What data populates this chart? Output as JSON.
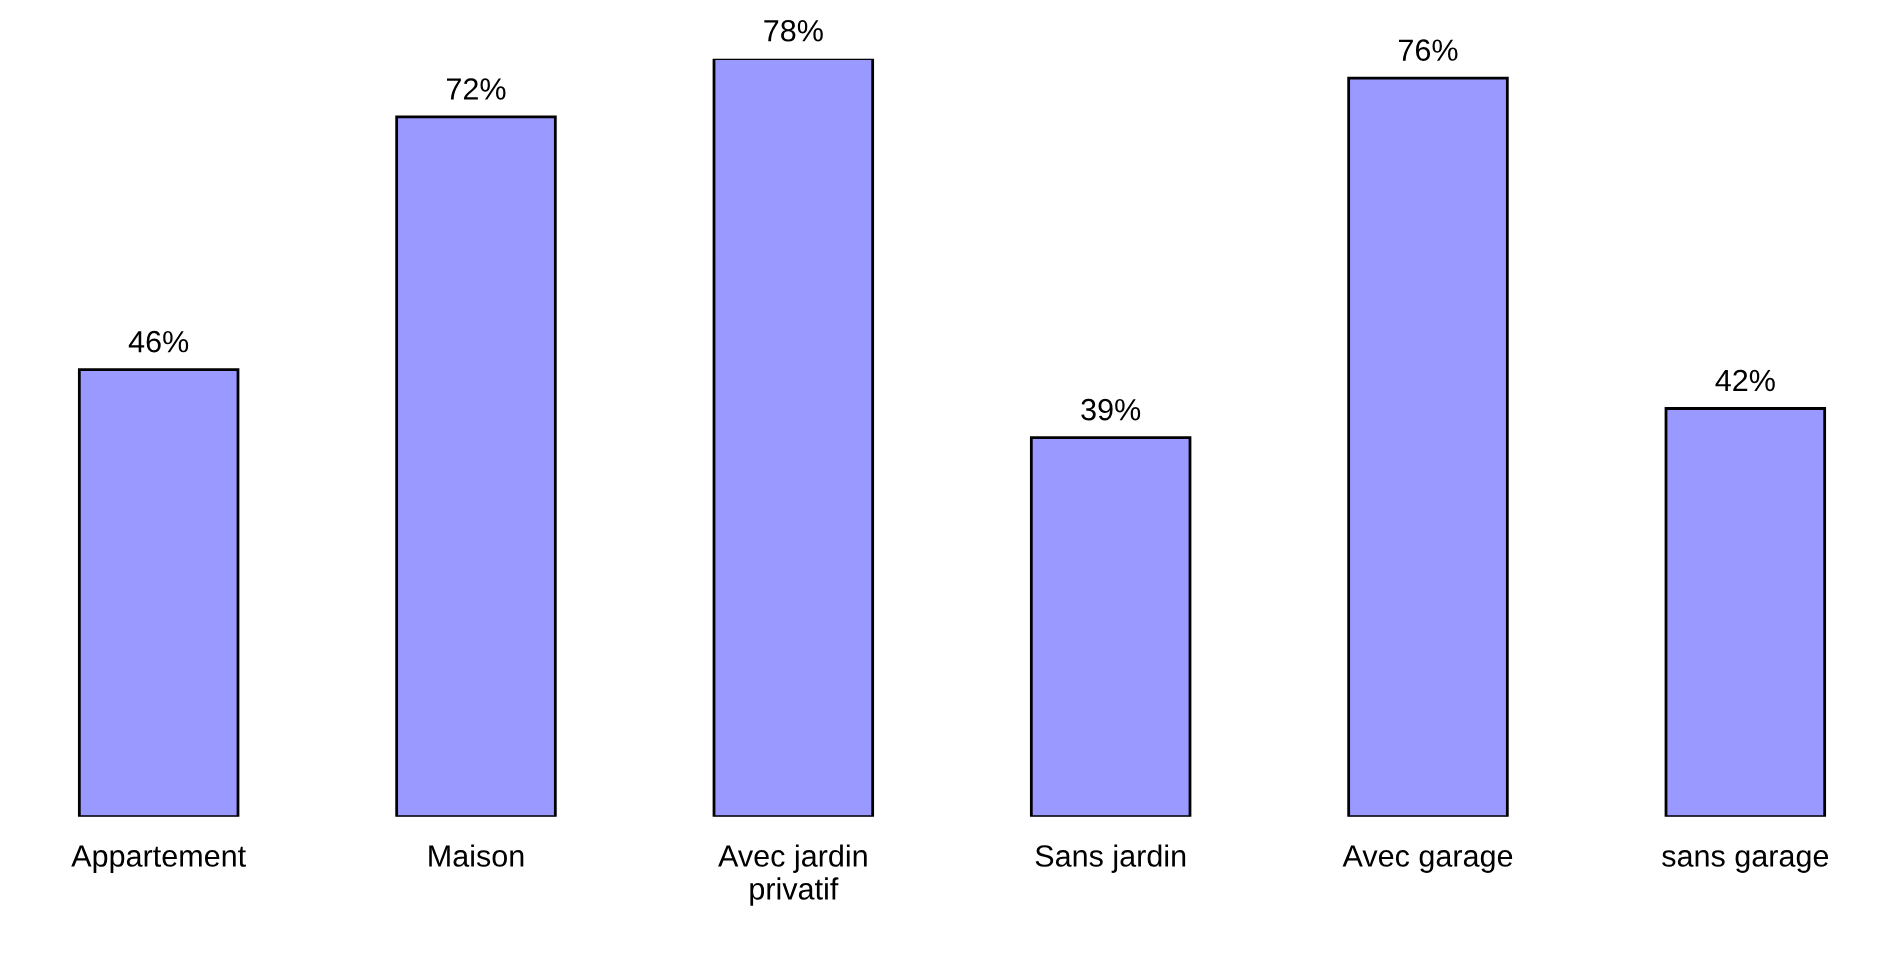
{
  "chart_data": {
    "type": "bar",
    "categories": [
      "Appartement",
      "Maison",
      "Avec jardin\nprivatif",
      "Sans jardin",
      "Avec garage",
      "sans garage"
    ],
    "values": [
      46,
      72,
      78,
      39,
      76,
      42
    ],
    "value_labels": [
      "46%",
      "72%",
      "78%",
      "39%",
      "76%",
      "42%"
    ],
    "color": "#9999ff",
    "grid": false,
    "legend": false
  }
}
